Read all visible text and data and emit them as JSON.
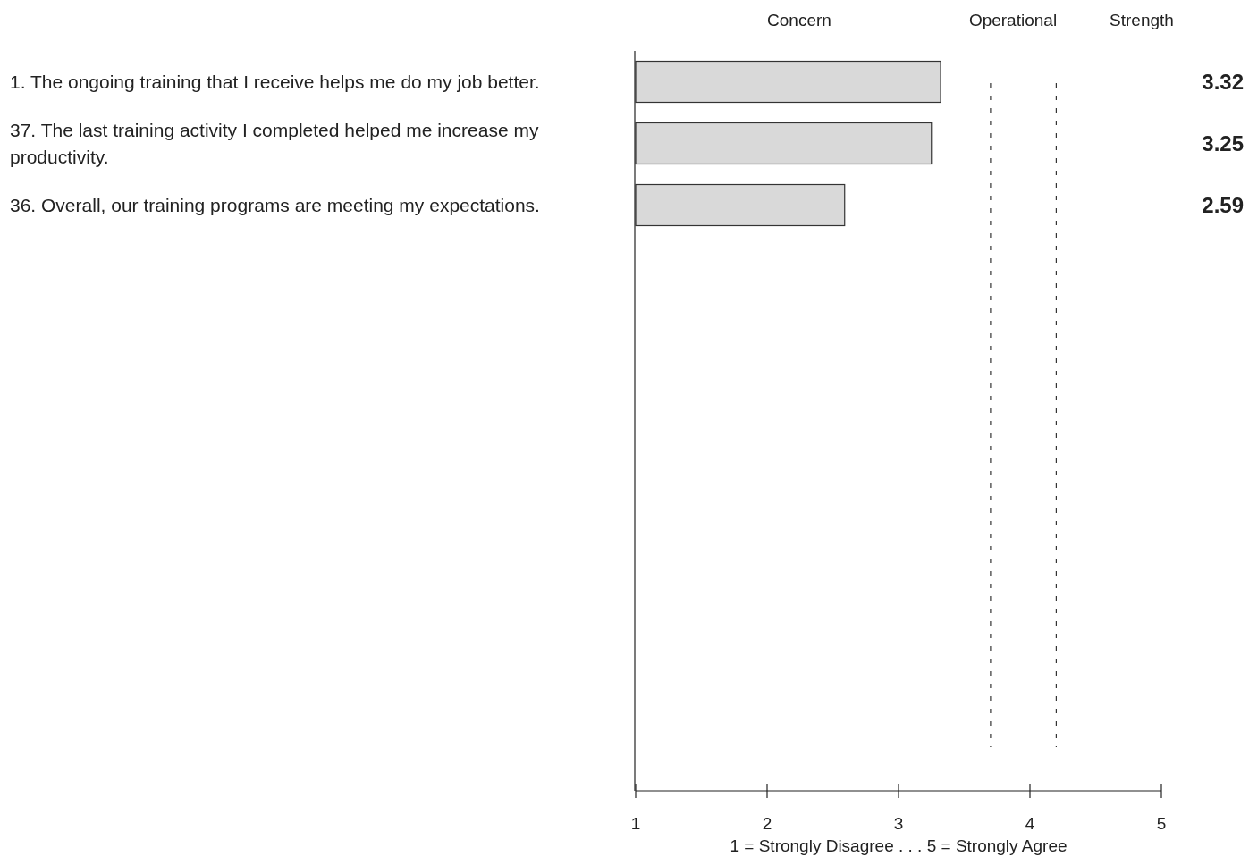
{
  "chart_data": {
    "type": "bar",
    "orientation": "horizontal",
    "categories": [
      "1.  The ongoing training that I receive helps me do my job better.",
      "37.  The last training activity I completed helped me increase my productivity.",
      "36.  Overall, our training programs are meeting my expectations.",
      null,
      null,
      null,
      null,
      null,
      null,
      null,
      null,
      null
    ],
    "values": [
      3.32,
      3.25,
      2.59,
      null,
      null,
      null,
      null,
      null,
      null,
      null,
      null,
      null
    ],
    "color": "#d9d9d9",
    "data_labels": true,
    "xlim": [
      1,
      5
    ],
    "xticks": [
      1,
      2,
      3,
      4,
      5
    ],
    "xlabel": "1 = Strongly Disagree . . . 5 = Strongly Agree",
    "ref_lines": [
      {
        "axis": "x",
        "value": 3.7,
        "line_style": "dotted"
      },
      {
        "axis": "x",
        "value": 4.2,
        "line_style": "dotted"
      }
    ],
    "annotations": [
      "Concern",
      "Operational",
      "Strength"
    ],
    "grid": false
  }
}
